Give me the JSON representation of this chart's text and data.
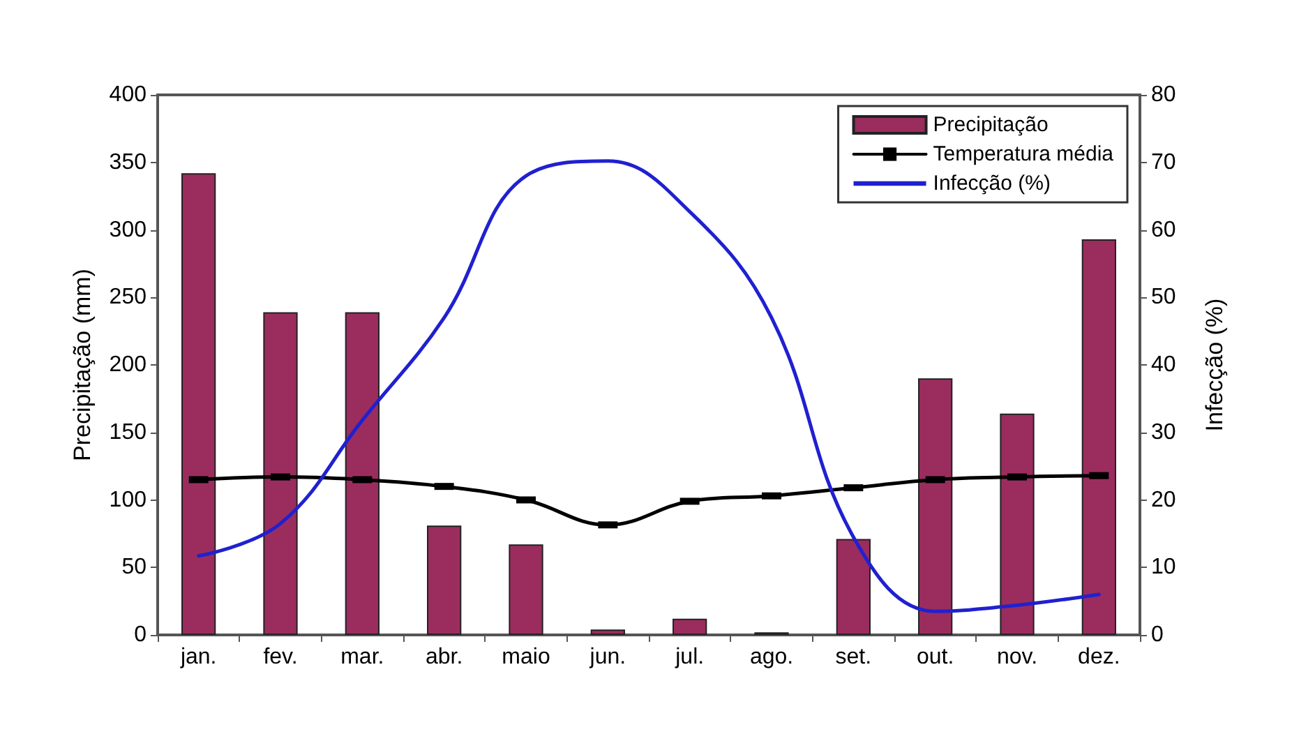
{
  "chart_data": {
    "type": "bar",
    "categories": [
      "jan.",
      "fev.",
      "mar.",
      "abr.",
      "maio",
      "jun.",
      "jul.",
      "ago.",
      "set.",
      "out.",
      "nov.",
      "dez."
    ],
    "series": [
      {
        "name": "Precipitação",
        "color": "#9b2d5e",
        "values": [
          342,
          239,
          239,
          81,
          67,
          4,
          12,
          2,
          71,
          190,
          164,
          293
        ]
      },
      {
        "name": "Temperatura média",
        "type": "line",
        "axis": "y2",
        "color": "#000000",
        "marker": "square",
        "values": [
          23,
          23.4,
          23,
          22,
          20,
          16.3,
          19.8,
          20.6,
          21.8,
          23,
          23.4,
          23.6
        ]
      },
      {
        "name": "Infecção (%)",
        "type": "line",
        "axis": "y2",
        "color": "#2020d0",
        "marker": "none",
        "values": [
          11.7,
          16.5,
          31.8,
          47,
          68,
          70.2,
          62.7,
          47,
          14.5,
          3.5,
          4.4,
          6
        ]
      }
    ],
    "ylabel": "Precipitação (mm)",
    "y2label": "Infecção (%)",
    "ylim": [
      0,
      400
    ],
    "yticks": [
      0,
      50,
      100,
      150,
      200,
      250,
      300,
      350,
      400
    ],
    "y2lim": [
      0,
      80
    ],
    "y2ticks": [
      0,
      10,
      20,
      30,
      40,
      50,
      60,
      70,
      80
    ],
    "legend": "top right",
    "grid": false,
    "line_style": "solid"
  }
}
